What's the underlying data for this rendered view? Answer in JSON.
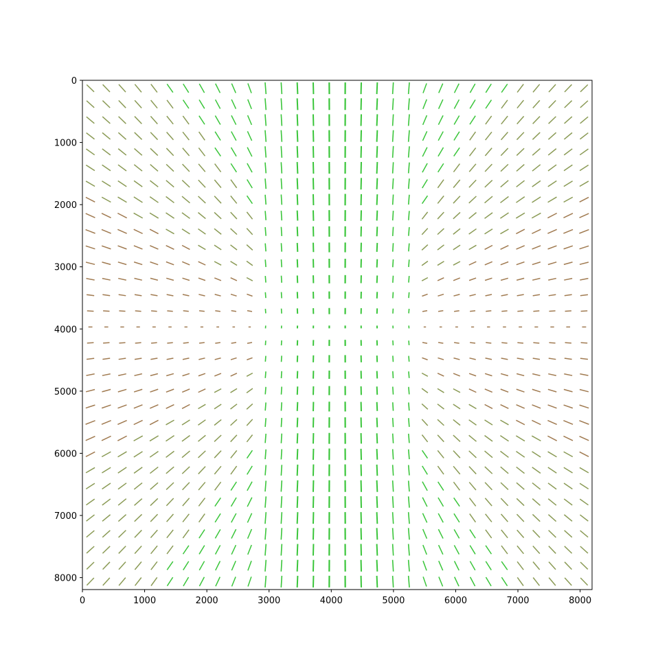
{
  "chart_data": {
    "type": "quiver",
    "title": "",
    "xlabel": "",
    "ylabel": "",
    "xlim": [
      0,
      8192
    ],
    "ylim": [
      8192,
      0
    ],
    "y_inverted": true,
    "grid": false,
    "legend": "none",
    "x_ticks": [
      0,
      1000,
      2000,
      3000,
      4000,
      5000,
      6000,
      7000,
      8000
    ],
    "y_ticks": [
      0,
      1000,
      2000,
      3000,
      4000,
      5000,
      6000,
      7000,
      8000
    ],
    "x_tick_labels": [
      "0",
      "1000",
      "2000",
      "3000",
      "4000",
      "5000",
      "6000",
      "7000",
      "8000"
    ],
    "y_tick_labels": [
      "0",
      "1000",
      "2000",
      "3000",
      "4000",
      "5000",
      "6000",
      "7000",
      "8000"
    ],
    "grid_spacing": 256,
    "grid_first": 128,
    "grid_count": 32,
    "field_center": [
      4096,
      3968
    ],
    "mark_style": "headless line segments, length grows with distance from center; near-vertical segments green, diagonal segments olive, near-horizontal segments brown",
    "colors": {
      "vertical": "#3ac53a",
      "diagonal": "#8a9a55",
      "horizontal": "#a07a50"
    }
  }
}
